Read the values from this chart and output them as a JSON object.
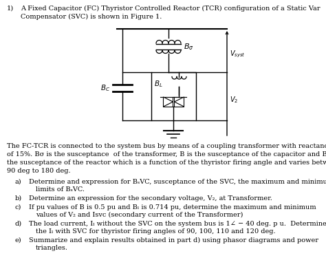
{
  "bg_color": "#ffffff",
  "text_color": "#000000",
  "font_size": 7.0,
  "title_number": "1)",
  "title_line1": "A Fixed Capacitor (FC) Thyristor Controlled Reactor (TCR) configuration of a Static Var",
  "title_line2": "Compensator (SVC) is shown in Figure 1.",
  "body_line1": "The FC-TCR is connected to the system bus by means of a coupling transformer with reactance",
  "body_line2": "of 15%. Bσ is the susceptance  of the transformer, B⁣ is the susceptance of the capacitor and Bₗ is",
  "body_line3": "the susceptance of the reactor which is a function of the thyristor firing angle and varies between",
  "body_line4": "90 deg to 180 deg.",
  "item_a_label": "a)",
  "item_a_text1": "Determine and expression for BₛVC, susceptance of the SVC, the maximum and minimum",
  "item_a_text2": "limits of BₛVC.",
  "item_b_label": "b)",
  "item_b_text": "Determine an expression for the secondary voltage, V₂, at Transformer.",
  "item_c_label": "c)",
  "item_c_text1": "If pu values of B⁣ is 0.5 pu and Bₗ is 0.714 pu, determine the maximum and minimum",
  "item_c_text2": "values of V₂ and Isvc (secondary current of the Transformer)",
  "item_d_label": "d)",
  "item_d_text1": "The load current, Iₗ without the SVC on the system bus is 1∠ − 40 deg. p u.  Determine",
  "item_d_text2": "the Iₗ with SVC for thyristor firing angles of 90, 100, 110 and 120 deg.",
  "item_e_label": "e)",
  "item_e_text1": "Summarize and explain results obtained in part d) using phasor diagrams and power",
  "item_e_text2": "triangles."
}
